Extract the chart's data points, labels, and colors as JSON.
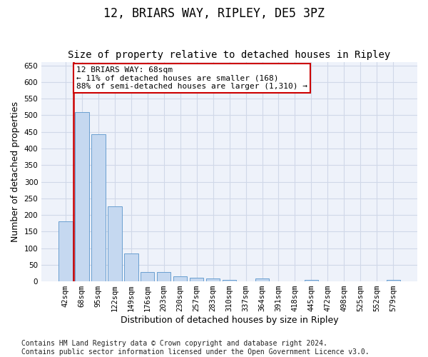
{
  "title": "12, BRIARS WAY, RIPLEY, DE5 3PZ",
  "subtitle": "Size of property relative to detached houses in Ripley",
  "xlabel": "Distribution of detached houses by size in Ripley",
  "ylabel": "Number of detached properties",
  "categories": [
    "42sqm",
    "68sqm",
    "95sqm",
    "122sqm",
    "149sqm",
    "176sqm",
    "203sqm",
    "230sqm",
    "257sqm",
    "283sqm",
    "310sqm",
    "337sqm",
    "364sqm",
    "391sqm",
    "418sqm",
    "445sqm",
    "472sqm",
    "498sqm",
    "525sqm",
    "552sqm",
    "579sqm"
  ],
  "values": [
    180,
    510,
    443,
    226,
    84,
    28,
    28,
    15,
    10,
    8,
    5,
    0,
    8,
    0,
    0,
    5,
    0,
    0,
    0,
    0,
    5
  ],
  "bar_color": "#c5d8f0",
  "bar_edge_color": "#6a9fd0",
  "highlight_index": 1,
  "red_line_x": 0.5,
  "highlight_color": "#cc0000",
  "ylim": [
    0,
    660
  ],
  "yticks": [
    0,
    50,
    100,
    150,
    200,
    250,
    300,
    350,
    400,
    450,
    500,
    550,
    600,
    650
  ],
  "annotation_text": "12 BRIARS WAY: 68sqm\n← 11% of detached houses are smaller (168)\n88% of semi-detached houses are larger (1,310) →",
  "annotation_box_color": "#ffffff",
  "annotation_box_edge": "#cc0000",
  "footer_text": "Contains HM Land Registry data © Crown copyright and database right 2024.\nContains public sector information licensed under the Open Government Licence v3.0.",
  "grid_color": "#d0d8e8",
  "background_color": "#eef2fa",
  "title_fontsize": 12,
  "subtitle_fontsize": 10,
  "axis_label_fontsize": 9,
  "tick_fontsize": 7.5,
  "annotation_fontsize": 8,
  "footer_fontsize": 7
}
